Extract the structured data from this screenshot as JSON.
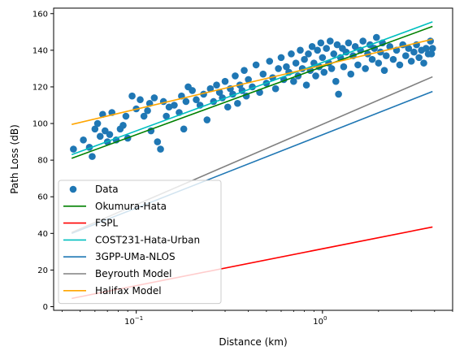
{
  "chart_data": {
    "type": "scatter",
    "xlabel": "Distance (km)",
    "ylabel": "Path Loss (dB)",
    "xscale": "log",
    "xlim": [
      0.036,
      5.0
    ],
    "ylim": [
      -2,
      163
    ],
    "grid": false,
    "legend_position": "lower-left",
    "x_tick_labels": [
      {
        "x": 0.1,
        "base": "10",
        "exp": "−1"
      },
      {
        "x": 1,
        "base": "10",
        "exp": "0"
      }
    ],
    "y_ticks": [
      0,
      20,
      40,
      60,
      80,
      100,
      120,
      140,
      160
    ],
    "scatter": {
      "name": "Data",
      "color": "#1f77b4",
      "points": [
        [
          0.046,
          86
        ],
        [
          0.052,
          91
        ],
        [
          0.056,
          87
        ],
        [
          0.058,
          82
        ],
        [
          0.06,
          97
        ],
        [
          0.062,
          100
        ],
        [
          0.064,
          93
        ],
        [
          0.066,
          105
        ],
        [
          0.068,
          96
        ],
        [
          0.07,
          90
        ],
        [
          0.072,
          94
        ],
        [
          0.074,
          106
        ],
        [
          0.078,
          91
        ],
        [
          0.082,
          97
        ],
        [
          0.085,
          99
        ],
        [
          0.088,
          104
        ],
        [
          0.09,
          92
        ],
        [
          0.095,
          115
        ],
        [
          0.1,
          108
        ],
        [
          0.105,
          113
        ],
        [
          0.11,
          104
        ],
        [
          0.115,
          107
        ],
        [
          0.118,
          111
        ],
        [
          0.12,
          96
        ],
        [
          0.125,
          114
        ],
        [
          0.13,
          90
        ],
        [
          0.135,
          86
        ],
        [
          0.14,
          112
        ],
        [
          0.145,
          104
        ],
        [
          0.15,
          109
        ],
        [
          0.16,
          110
        ],
        [
          0.17,
          106
        ],
        [
          0.175,
          115
        ],
        [
          0.18,
          97
        ],
        [
          0.185,
          112
        ],
        [
          0.19,
          120
        ],
        [
          0.2,
          118
        ],
        [
          0.21,
          113
        ],
        [
          0.22,
          110
        ],
        [
          0.23,
          116
        ],
        [
          0.24,
          102
        ],
        [
          0.25,
          119
        ],
        [
          0.26,
          112
        ],
        [
          0.27,
          121
        ],
        [
          0.28,
          117
        ],
        [
          0.29,
          114
        ],
        [
          0.3,
          123
        ],
        [
          0.31,
          109
        ],
        [
          0.32,
          119
        ],
        [
          0.33,
          116
        ],
        [
          0.34,
          126
        ],
        [
          0.35,
          111
        ],
        [
          0.36,
          121
        ],
        [
          0.37,
          118
        ],
        [
          0.38,
          129
        ],
        [
          0.39,
          115
        ],
        [
          0.4,
          124
        ],
        [
          0.42,
          120
        ],
        [
          0.44,
          132
        ],
        [
          0.46,
          117
        ],
        [
          0.48,
          127
        ],
        [
          0.5,
          122
        ],
        [
          0.52,
          134
        ],
        [
          0.54,
          125
        ],
        [
          0.56,
          119
        ],
        [
          0.58,
          130
        ],
        [
          0.6,
          136
        ],
        [
          0.62,
          124
        ],
        [
          0.64,
          131
        ],
        [
          0.66,
          128
        ],
        [
          0.68,
          138
        ],
        [
          0.7,
          123
        ],
        [
          0.72,
          133
        ],
        [
          0.74,
          126
        ],
        [
          0.76,
          140
        ],
        [
          0.78,
          130
        ],
        [
          0.8,
          135
        ],
        [
          0.82,
          121
        ],
        [
          0.84,
          138
        ],
        [
          0.86,
          129
        ],
        [
          0.88,
          142
        ],
        [
          0.9,
          133
        ],
        [
          0.92,
          126
        ],
        [
          0.94,
          140
        ],
        [
          0.96,
          131
        ],
        [
          0.98,
          144
        ],
        [
          1.0,
          136
        ],
        [
          1.02,
          128
        ],
        [
          1.05,
          141
        ],
        [
          1.08,
          133
        ],
        [
          1.1,
          145
        ],
        [
          1.12,
          130
        ],
        [
          1.15,
          138
        ],
        [
          1.18,
          123
        ],
        [
          1.2,
          143
        ],
        [
          1.22,
          116
        ],
        [
          1.25,
          136
        ],
        [
          1.28,
          141
        ],
        [
          1.3,
          131
        ],
        [
          1.34,
          139
        ],
        [
          1.38,
          144
        ],
        [
          1.42,
          127
        ],
        [
          1.46,
          137
        ],
        [
          1.5,
          142
        ],
        [
          1.55,
          132
        ],
        [
          1.6,
          140
        ],
        [
          1.65,
          145
        ],
        [
          1.7,
          130
        ],
        [
          1.75,
          138
        ],
        [
          1.8,
          143
        ],
        [
          1.85,
          135
        ],
        [
          1.9,
          141
        ],
        [
          1.95,
          147
        ],
        [
          2.0,
          133
        ],
        [
          2.05,
          139
        ],
        [
          2.1,
          144
        ],
        [
          2.15,
          129
        ],
        [
          2.2,
          137
        ],
        [
          2.3,
          142
        ],
        [
          2.4,
          135
        ],
        [
          2.5,
          140
        ],
        [
          2.6,
          132
        ],
        [
          2.7,
          143
        ],
        [
          2.8,
          137
        ],
        [
          2.9,
          141
        ],
        [
          3.0,
          134
        ],
        [
          3.1,
          139
        ],
        [
          3.2,
          143
        ],
        [
          3.3,
          136
        ],
        [
          3.4,
          140
        ],
        [
          3.5,
          133
        ],
        [
          3.6,
          141
        ],
        [
          3.7,
          138
        ],
        [
          3.8,
          145
        ],
        [
          3.85,
          138
        ],
        [
          3.9,
          141
        ]
      ]
    },
    "lines": [
      {
        "name": "Okumura-Hata",
        "color": "#008000",
        "x": [
          0.045,
          3.9
        ],
        "y": [
          81,
          153
        ]
      },
      {
        "name": "FSPL",
        "color": "#ff0000",
        "x": [
          0.045,
          3.9
        ],
        "y": [
          4.5,
          43.5
        ]
      },
      {
        "name": "COST231-Hata-Urban",
        "color": "#00bfbf",
        "x": [
          0.045,
          3.9
        ],
        "y": [
          83,
          155.5
        ]
      },
      {
        "name": "3GPP-UMa-NLOS",
        "color": "#1f77b4",
        "x": [
          0.045,
          3.9
        ],
        "y": [
          40,
          117.5
        ]
      },
      {
        "name": "Beyrouth Model",
        "color": "#808080",
        "x": [
          0.045,
          3.9
        ],
        "y": [
          40.5,
          125.5
        ]
      },
      {
        "name": "Halifax Model",
        "color": "#ffa500",
        "x": [
          0.045,
          3.9
        ],
        "y": [
          99.5,
          146
        ]
      }
    ]
  }
}
